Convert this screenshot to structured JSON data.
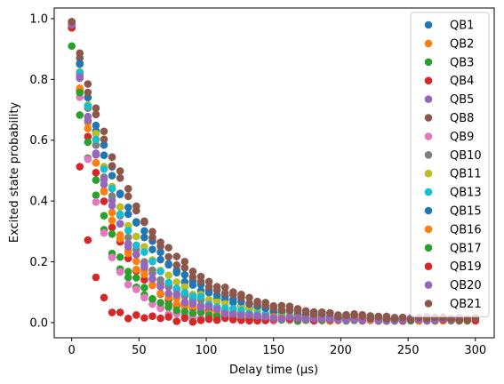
{
  "chart_data": {
    "type": "scatter",
    "xlabel": "Delay time (µs)",
    "ylabel": "Excited state probability",
    "xlim": [
      -13,
      314
    ],
    "ylim": [
      -0.05,
      1.035
    ],
    "xticks": [
      0,
      50,
      100,
      150,
      200,
      250,
      300
    ],
    "yticks": [
      0.0,
      0.2,
      0.4,
      0.6,
      0.8,
      1.0
    ],
    "xtick_labels": [
      "0",
      "50",
      "100",
      "150",
      "200",
      "250",
      "300"
    ],
    "ytick_labels": [
      "0.0",
      "0.2",
      "0.4",
      "0.6",
      "0.8",
      "1.0"
    ],
    "legend_position": "top-right",
    "grid": false,
    "x_points": [
      0,
      6,
      12,
      18,
      24,
      30,
      36,
      42,
      48,
      54,
      60,
      66,
      72,
      78,
      84,
      90,
      96,
      102,
      108,
      114,
      120,
      126,
      132,
      138,
      144,
      150,
      156,
      162,
      168,
      174,
      180,
      186,
      192,
      198,
      204,
      210,
      216,
      222,
      228,
      234,
      240,
      246,
      252,
      258,
      264,
      270,
      276,
      282,
      288,
      294,
      300
    ],
    "series": [
      {
        "name": "QB1",
        "color": "#1f77b4",
        "y0": 0.97,
        "tau": 42
      },
      {
        "name": "QB2",
        "color": "#ff7f0e",
        "y0": 0.96,
        "tau": 30
      },
      {
        "name": "QB3",
        "color": "#2ca02c",
        "y0": 0.9,
        "tau": 22
      },
      {
        "name": "QB4",
        "color": "#d62728",
        "y0": 0.96,
        "tau": 27
      },
      {
        "name": "QB5",
        "color": "#9467bd",
        "y0": 0.97,
        "tau": 32
      },
      {
        "name": "QB8",
        "color": "#8c564b",
        "y0": 0.98,
        "tau": 50
      },
      {
        "name": "QB9",
        "color": "#e377c2",
        "y0": 0.97,
        "tau": 20
      },
      {
        "name": "QB10",
        "color": "#7f7f7f",
        "y0": 0.97,
        "tau": 34
      },
      {
        "name": "QB11",
        "color": "#bcbd22",
        "y0": 0.97,
        "tau": 38
      },
      {
        "name": "QB13",
        "color": "#17becf",
        "y0": 0.97,
        "tau": 36
      },
      {
        "name": "QB15",
        "color": "#1f77b4",
        "y0": 0.97,
        "tau": 44
      },
      {
        "name": "QB16",
        "color": "#ff7f0e",
        "y0": 0.96,
        "tau": 28
      },
      {
        "name": "QB17",
        "color": "#2ca02c",
        "y0": 0.96,
        "tau": 24
      },
      {
        "name": "QB19",
        "color": "#d62728",
        "y0": 0.96,
        "tau": 9
      },
      {
        "name": "QB20",
        "color": "#9467bd",
        "y0": 0.97,
        "tau": 31
      },
      {
        "name": "QB21",
        "color": "#8c564b",
        "y0": 0.98,
        "tau": 47
      }
    ]
  }
}
